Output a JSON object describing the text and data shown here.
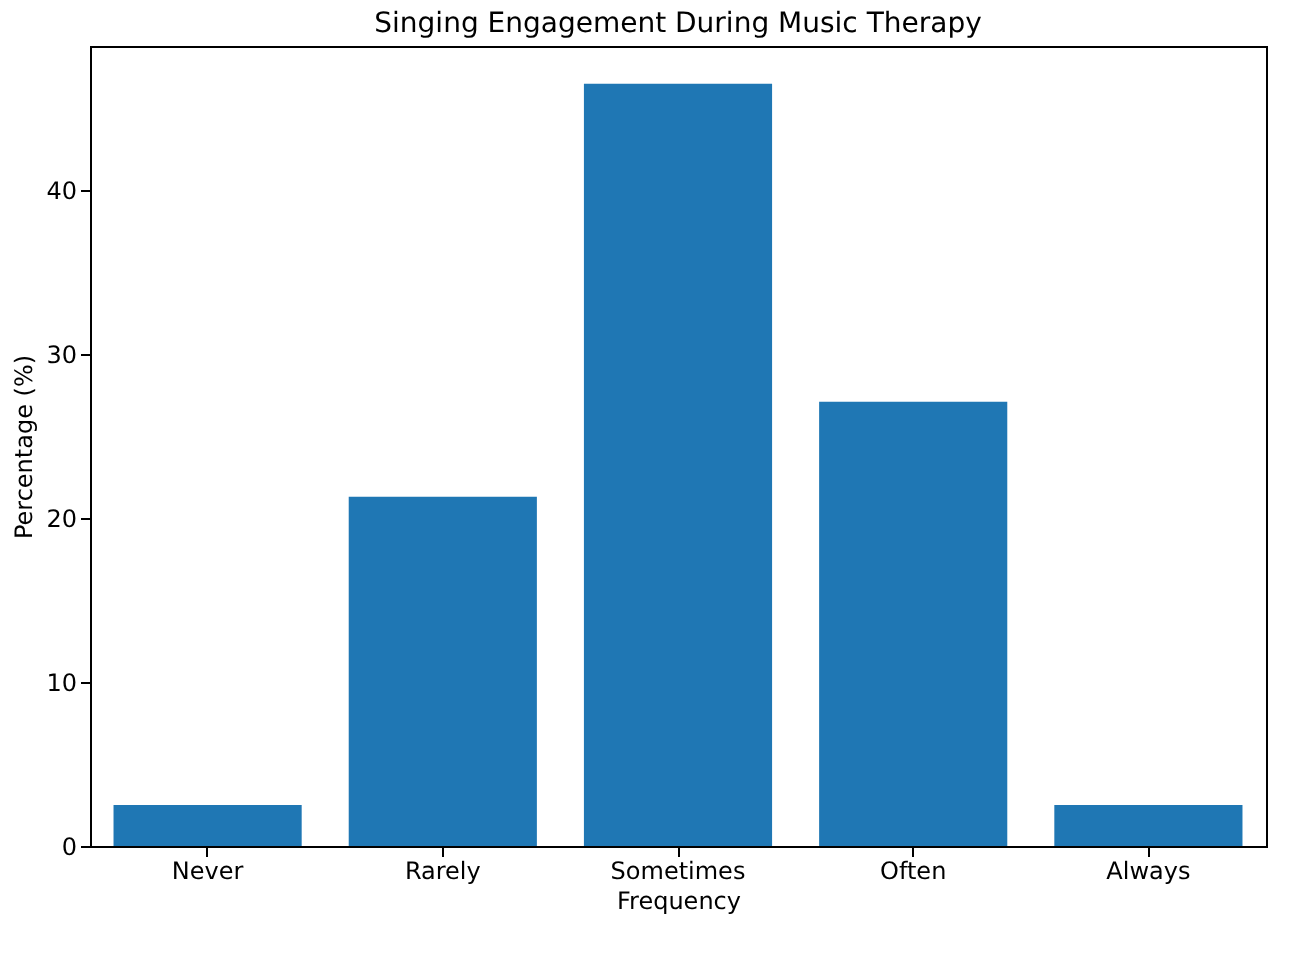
{
  "chart_data": {
    "type": "bar",
    "title": "Singing Engagement During Music Therapy",
    "xlabel": "Frequency",
    "ylabel": "Percentage (%)",
    "categories": [
      "Never",
      "Rarely",
      "Sometimes",
      "Often",
      "Always"
    ],
    "values": [
      2.5,
      21.3,
      46.5,
      27.1,
      2.5
    ],
    "color": "#1f77b4",
    "ylim": [
      0,
      48.8
    ],
    "yticks": [
      0,
      10,
      20,
      30,
      40
    ],
    "grid": false
  }
}
